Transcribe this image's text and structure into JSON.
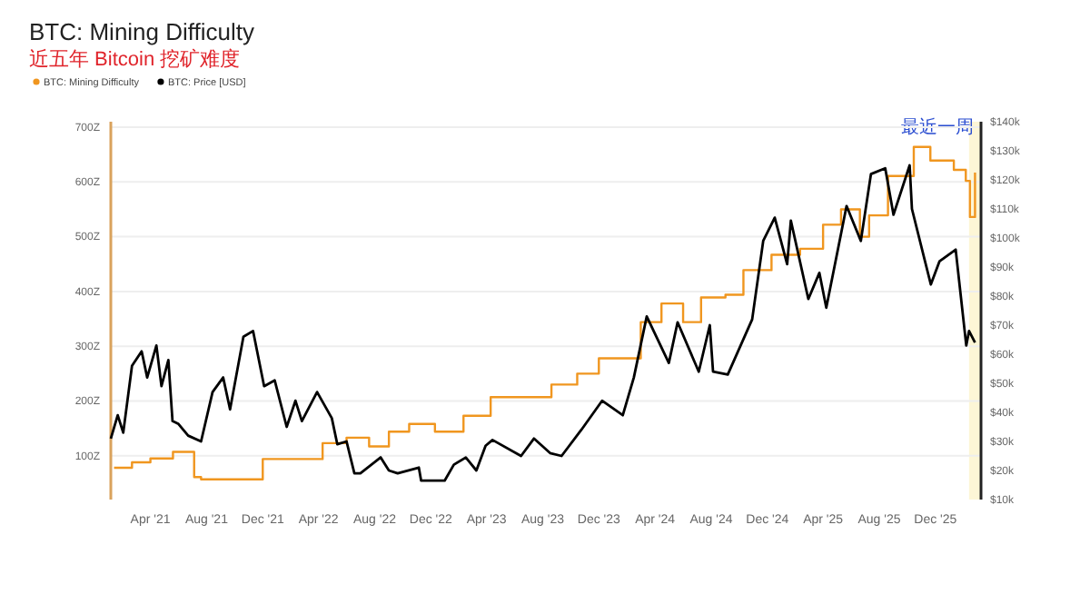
{
  "chart_data": {
    "type": "line",
    "title": "BTC: Mining Difficulty",
    "subtitle": "近五年 Bitcoin 挖矿难度",
    "legend": "top left",
    "grid": "y",
    "xlim": [
      "2021-01-05",
      "2026-03-10"
    ],
    "xticks": [
      {
        "value": "2021-04-01",
        "label": "Apr '21"
      },
      {
        "value": "2021-08-01",
        "label": "Aug '21"
      },
      {
        "value": "2021-12-01",
        "label": "Dec '21"
      },
      {
        "value": "2022-04-01",
        "label": "Apr '22"
      },
      {
        "value": "2022-08-01",
        "label": "Aug '22"
      },
      {
        "value": "2022-12-01",
        "label": "Dec '22"
      },
      {
        "value": "2023-04-01",
        "label": "Apr '23"
      },
      {
        "value": "2023-08-01",
        "label": "Aug '23"
      },
      {
        "value": "2023-12-01",
        "label": "Dec '23"
      },
      {
        "value": "2024-04-01",
        "label": "Apr '24"
      },
      {
        "value": "2024-08-01",
        "label": "Aug '24"
      },
      {
        "value": "2024-12-01",
        "label": "Dec '24"
      },
      {
        "value": "2025-04-01",
        "label": "Apr '25"
      },
      {
        "value": "2025-08-01",
        "label": "Aug '25"
      },
      {
        "value": "2025-12-01",
        "label": "Dec '25"
      }
    ],
    "ylim": [
      20,
      710
    ],
    "yticks": [
      {
        "value": 100,
        "label": "100Z"
      },
      {
        "value": 200,
        "label": "200Z"
      },
      {
        "value": 300,
        "label": "300Z"
      },
      {
        "value": 400,
        "label": "400Z"
      },
      {
        "value": 500,
        "label": "500Z"
      },
      {
        "value": 600,
        "label": "600Z"
      },
      {
        "value": 700,
        "label": "700Z"
      }
    ],
    "y2lim": [
      10000,
      140000
    ],
    "y2ticks": [
      {
        "value": 10000,
        "label": "$10k"
      },
      {
        "value": 20000,
        "label": "$20k"
      },
      {
        "value": 30000,
        "label": "$30k"
      },
      {
        "value": 40000,
        "label": "$40k"
      },
      {
        "value": 50000,
        "label": "$50k"
      },
      {
        "value": 60000,
        "label": "$60k"
      },
      {
        "value": 70000,
        "label": "$70k"
      },
      {
        "value": 80000,
        "label": "$80k"
      },
      {
        "value": 90000,
        "label": "$90k"
      },
      {
        "value": 100000,
        "label": "$100k"
      },
      {
        "value": 110000,
        "label": "$110k"
      },
      {
        "value": 120000,
        "label": "$120k"
      },
      {
        "value": 130000,
        "label": "$130k"
      },
      {
        "value": 140000,
        "label": "$140k"
      }
    ],
    "bands": [
      {
        "axis": "x",
        "from": "2026-02-12",
        "to": "2026-03-10",
        "label": "最近一周",
        "color": "#fdf6d6"
      }
    ],
    "series": [
      {
        "name": "BTC: Mining Difficulty",
        "type": "step",
        "color": "#f0961f",
        "x": [
          "2021-01-12",
          "2021-02-20",
          "2021-04-01",
          "2021-05-20",
          "2021-07-05",
          "2021-07-20",
          "2021-12-01",
          "2022-04-10",
          "2022-06-01",
          "2022-07-20",
          "2022-09-01",
          "2022-10-15",
          "2022-12-10",
          "2023-02-10",
          "2023-04-10",
          "2023-08-20",
          "2023-10-15",
          "2023-12-01",
          "2024-03-01",
          "2024-04-15",
          "2024-06-01",
          "2024-07-10",
          "2024-09-01",
          "2024-10-10",
          "2024-12-10",
          "2025-02-10",
          "2025-04-01",
          "2025-05-10",
          "2025-06-20",
          "2025-07-10",
          "2025-08-20",
          "2025-10-15",
          "2025-11-20",
          "2026-01-10",
          "2026-02-05",
          "2026-02-14",
          "2026-02-25"
        ],
        "values": [
          78,
          88,
          95,
          107,
          61,
          57,
          94,
          123,
          133,
          117,
          144,
          158,
          144,
          173,
          207,
          230,
          250,
          278,
          344,
          378,
          344,
          389,
          394,
          439,
          467,
          478,
          522,
          550,
          500,
          539,
          611,
          664,
          639,
          622,
          602,
          536,
          617
        ]
      },
      {
        "name": "BTC: Price [USD]",
        "axis": "y2",
        "color": "#000000",
        "x": [
          "2021-01-05",
          "2021-01-20",
          "2021-02-01",
          "2021-02-20",
          "2021-03-13",
          "2021-03-25",
          "2021-04-14",
          "2021-04-25",
          "2021-05-10",
          "2021-05-19",
          "2021-06-01",
          "2021-06-22",
          "2021-07-20",
          "2021-08-14",
          "2021-09-06",
          "2021-09-21",
          "2021-10-20",
          "2021-11-10",
          "2021-12-04",
          "2021-12-27",
          "2022-01-22",
          "2022-02-10",
          "2022-02-24",
          "2022-03-29",
          "2022-04-30",
          "2022-05-12",
          "2022-06-01",
          "2022-06-18",
          "2022-07-01",
          "2022-08-14",
          "2022-09-01",
          "2022-09-20",
          "2022-11-05",
          "2022-11-10",
          "2022-12-31",
          "2023-01-20",
          "2023-02-15",
          "2023-03-10",
          "2023-03-30",
          "2023-04-14",
          "2023-06-15",
          "2023-07-13",
          "2023-08-17",
          "2023-09-11",
          "2023-10-24",
          "2023-12-08",
          "2024-01-22",
          "2024-02-15",
          "2024-03-14",
          "2024-05-01",
          "2024-05-20",
          "2024-07-05",
          "2024-07-29",
          "2024-08-05",
          "2024-09-06",
          "2024-10-29",
          "2024-11-22",
          "2024-12-17",
          "2025-01-13",
          "2025-01-21",
          "2025-02-28",
          "2025-03-24",
          "2025-04-08",
          "2025-05-22",
          "2025-06-22",
          "2025-07-14",
          "2025-08-14",
          "2025-09-01",
          "2025-10-06",
          "2025-10-11",
          "2025-11-21",
          "2025-12-10",
          "2026-01-14",
          "2026-02-06",
          "2026-02-12",
          "2026-02-25"
        ],
        "values": [
          31000,
          39000,
          33000,
          56000,
          61000,
          52000,
          63000,
          49000,
          58000,
          37000,
          36000,
          32000,
          30000,
          47000,
          52000,
          41000,
          66000,
          68000,
          49000,
          51000,
          35000,
          44000,
          37000,
          47000,
          38000,
          29000,
          30000,
          19000,
          19000,
          24500,
          20000,
          19000,
          21000,
          16500,
          16500,
          22000,
          24500,
          20000,
          28500,
          30500,
          25000,
          31000,
          26000,
          25000,
          34000,
          44000,
          39000,
          52000,
          73000,
          57000,
          71000,
          54000,
          70000,
          54000,
          53000,
          72000,
          99000,
          107000,
          91000,
          106000,
          79000,
          88000,
          76000,
          111000,
          99000,
          122000,
          124000,
          108000,
          125000,
          110000,
          84000,
          92000,
          96000,
          63000,
          68000,
          64000
        ]
      }
    ]
  }
}
